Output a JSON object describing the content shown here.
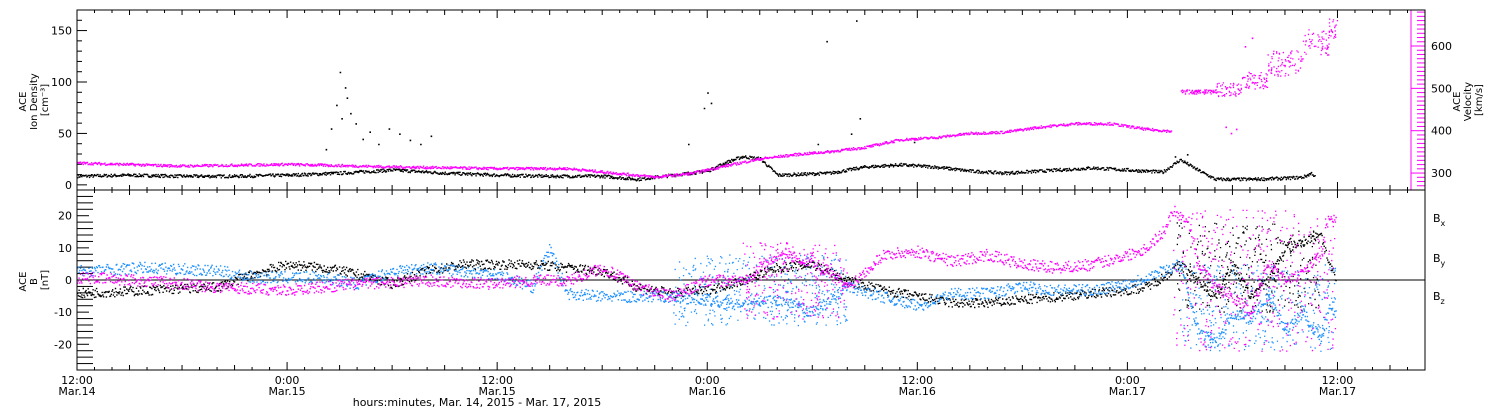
{
  "colors": {
    "density": "#000000",
    "velocity": "#ff00ff",
    "bx": "#000000",
    "by": "#1e90ff",
    "bz": "#ff00ff"
  },
  "time_axis": {
    "ticks": [
      {
        "hour": 0,
        "time": "12:00",
        "date": "Mar.14"
      },
      {
        "hour": 12,
        "time": "0:00",
        "date": "Mar.15"
      },
      {
        "hour": 24,
        "time": "12:00",
        "date": "Mar.15"
      },
      {
        "hour": 36,
        "time": "0:00",
        "date": "Mar.16"
      },
      {
        "hour": 48,
        "time": "12:00",
        "date": "Mar.16"
      },
      {
        "hour": 60,
        "time": "0:00",
        "date": "Mar.17"
      },
      {
        "hour": 72,
        "time": "12:00",
        "date": "Mar.17"
      }
    ],
    "label": "hours:minutes, Mar. 14, 2015 - Mar. 17, 2015"
  },
  "chart_data": [
    {
      "type": "scatter",
      "ylabel_lines": [
        "ACE",
        "Ion Density",
        "[cm⁻³]"
      ],
      "ylim": [
        -5,
        170
      ],
      "yticks": [
        0,
        50,
        100,
        150
      ],
      "y2label_lines": [
        "ACE",
        "Velocity",
        "[km/s]"
      ],
      "y2lim": [
        260,
        685
      ],
      "y2ticks": [
        300,
        400,
        500,
        600
      ],
      "xlim_hours": [
        0,
        77
      ],
      "series": [
        {
          "key": "density",
          "axis": "left",
          "knots": [
            [
              0,
              9
            ],
            [
              3,
              10
            ],
            [
              6,
              9
            ],
            [
              9,
              9
            ],
            [
              12,
              10
            ],
            [
              15,
              12
            ],
            [
              18,
              15
            ],
            [
              21,
              12
            ],
            [
              24,
              10
            ],
            [
              27,
              9
            ],
            [
              30,
              9
            ],
            [
              32,
              6
            ],
            [
              34,
              10
            ],
            [
              36,
              14
            ],
            [
              37,
              22
            ],
            [
              38,
              28
            ],
            [
              39,
              26
            ],
            [
              40,
              10
            ],
            [
              43,
              12
            ],
            [
              45,
              18
            ],
            [
              47,
              20
            ],
            [
              49,
              18
            ],
            [
              51,
              14
            ],
            [
              53,
              12
            ],
            [
              56,
              15
            ],
            [
              58,
              17
            ],
            [
              60,
              15
            ],
            [
              61,
              14
            ],
            [
              62,
              13
            ],
            [
              63,
              25
            ],
            [
              64,
              15
            ],
            [
              65,
              6
            ],
            [
              67,
              6
            ],
            [
              69,
              7
            ],
            [
              70,
              8
            ],
            [
              70.5,
              12
            ],
            [
              70.7,
              8
            ]
          ],
          "noise": 1.5,
          "step": 0.04,
          "spikes": [
            [
              15.0,
              110
            ],
            [
              15.3,
              95
            ],
            [
              14.8,
              78
            ],
            [
              15.6,
              70
            ],
            [
              14.5,
              55
            ],
            [
              15.9,
              60
            ],
            [
              16.3,
              45
            ],
            [
              16.7,
              52
            ],
            [
              17.2,
              40
            ],
            [
              17.8,
              55
            ],
            [
              18.4,
              50
            ],
            [
              19.0,
              44
            ],
            [
              19.6,
              40
            ],
            [
              20.2,
              48
            ],
            [
              14.2,
              35
            ],
            [
              15.1,
              65
            ],
            [
              15.4,
              85
            ],
            [
              36.0,
              90
            ],
            [
              36.2,
              80
            ],
            [
              35.8,
              75
            ],
            [
              34.9,
              40
            ],
            [
              42.8,
              140
            ],
            [
              44.5,
              160
            ],
            [
              44.7,
              65
            ],
            [
              44.2,
              50
            ],
            [
              42.3,
              40
            ],
            [
              47.8,
              42
            ],
            [
              62.7,
              28
            ],
            [
              63.4,
              30
            ]
          ]
        },
        {
          "key": "velocity",
          "axis": "right",
          "knots": [
            [
              0,
              325
            ],
            [
              6,
              318
            ],
            [
              12,
              322
            ],
            [
              18,
              316
            ],
            [
              24,
              312
            ],
            [
              28,
              312
            ],
            [
              31,
              300
            ],
            [
              33,
              292
            ],
            [
              35,
              300
            ],
            [
              37,
              318
            ],
            [
              39,
              335
            ],
            [
              41,
              345
            ],
            [
              43,
              352
            ],
            [
              45,
              362
            ],
            [
              47,
              380
            ],
            [
              49,
              385
            ],
            [
              51,
              395
            ],
            [
              53,
              398
            ],
            [
              55,
              410
            ],
            [
              57,
              418
            ],
            [
              59,
              418
            ],
            [
              61,
              405
            ],
            [
              62.5,
              400
            ]
          ],
          "noise": 3,
          "step": 0.04,
          "cloud": [
            [
              63,
              65,
              488,
              498
            ],
            [
              65,
              66.5,
              480,
              515
            ],
            [
              66.5,
              68,
              500,
              540
            ],
            [
              68,
              70,
              530,
              590
            ],
            [
              70,
              71.5,
              580,
              640
            ],
            [
              71.5,
              72,
              620,
              665
            ]
          ],
          "spikes": [
            [
              65.6,
              410
            ],
            [
              65.9,
              395
            ],
            [
              66.2,
              405
            ],
            [
              66.7,
              600
            ],
            [
              67.1,
              620
            ]
          ]
        }
      ]
    },
    {
      "type": "scatter",
      "ylabel_lines": [
        "ACE",
        "B",
        "[nT]"
      ],
      "ylim": [
        -28,
        28
      ],
      "yticks": [
        -20,
        -10,
        0,
        10,
        20
      ],
      "xlim_hours": [
        0,
        77
      ],
      "series": [
        {
          "key": "bx",
          "name": "Bx",
          "knots": [
            [
              0,
              -4
            ],
            [
              4,
              -3
            ],
            [
              8,
              -2
            ],
            [
              10,
              2
            ],
            [
              12,
              5
            ],
            [
              14,
              4
            ],
            [
              16,
              2
            ],
            [
              18,
              -1
            ],
            [
              20,
              3
            ],
            [
              22,
              5
            ],
            [
              24,
              5
            ],
            [
              26,
              5
            ],
            [
              28,
              4
            ],
            [
              30,
              3
            ],
            [
              32,
              -2
            ],
            [
              34,
              -4
            ],
            [
              36,
              -3
            ],
            [
              38,
              0
            ],
            [
              40,
              4
            ],
            [
              42,
              5
            ],
            [
              44,
              0
            ],
            [
              46,
              -3
            ],
            [
              48,
              -5
            ],
            [
              50,
              -7
            ],
            [
              52,
              -7
            ],
            [
              54,
              -6
            ],
            [
              56,
              -5
            ],
            [
              58,
              -4
            ],
            [
              60,
              -3
            ],
            [
              61,
              -2
            ],
            [
              62,
              1
            ],
            [
              63,
              5
            ],
            [
              64,
              0
            ],
            [
              65,
              -5
            ],
            [
              66,
              5
            ],
            [
              67,
              -5
            ],
            [
              68,
              0
            ],
            [
              69,
              10
            ],
            [
              70,
              12
            ],
            [
              71,
              15
            ],
            [
              71.5,
              5
            ],
            [
              71.9,
              0
            ]
          ],
          "noise": 1.5,
          "step": 0.04,
          "cloud": [
            [
              62.8,
              71,
              -10,
              18
            ]
          ]
        },
        {
          "key": "by",
          "name": "By",
          "knots": [
            [
              0,
              3
            ],
            [
              4,
              4
            ],
            [
              8,
              3
            ],
            [
              10,
              1
            ],
            [
              12,
              1
            ],
            [
              14,
              1
            ],
            [
              16,
              -1
            ],
            [
              18,
              3
            ],
            [
              20,
              4
            ],
            [
              22,
              3
            ],
            [
              24,
              2
            ],
            [
              26,
              -2
            ],
            [
              27,
              10
            ],
            [
              28,
              -4
            ],
            [
              30,
              -5
            ],
            [
              32,
              -5
            ],
            [
              34,
              -5
            ],
            [
              36,
              -6
            ],
            [
              38,
              -8
            ],
            [
              40,
              -6
            ],
            [
              42,
              -10
            ],
            [
              44,
              -2
            ],
            [
              46,
              -5
            ],
            [
              48,
              -8
            ],
            [
              50,
              -4
            ],
            [
              52,
              -4
            ],
            [
              54,
              -2
            ],
            [
              56,
              -3
            ],
            [
              58,
              -3
            ],
            [
              60,
              -1
            ],
            [
              61,
              1
            ],
            [
              62,
              3
            ],
            [
              63,
              5
            ],
            [
              64,
              -15
            ],
            [
              65,
              -20
            ],
            [
              66,
              -10
            ],
            [
              67,
              -12
            ],
            [
              68,
              -5
            ],
            [
              69,
              -15
            ],
            [
              70,
              -10
            ],
            [
              71,
              -18
            ],
            [
              71.5,
              -8
            ],
            [
              71.9,
              -10
            ]
          ],
          "noise": 1.8,
          "step": 0.04,
          "cloud": [
            [
              63,
              71.9,
              -22,
              5
            ],
            [
              34,
              44,
              -14,
              8
            ]
          ]
        },
        {
          "key": "bz",
          "name": "Bz",
          "knots": [
            [
              0,
              1
            ],
            [
              4,
              0
            ],
            [
              8,
              -2
            ],
            [
              12,
              -3
            ],
            [
              16,
              -1
            ],
            [
              20,
              0
            ],
            [
              24,
              -1
            ],
            [
              26,
              0
            ],
            [
              28,
              0
            ],
            [
              30,
              4
            ],
            [
              32,
              -2
            ],
            [
              34,
              -5
            ],
            [
              36,
              0
            ],
            [
              38,
              0
            ],
            [
              40,
              8
            ],
            [
              42,
              6
            ],
            [
              44,
              -2
            ],
            [
              46,
              8
            ],
            [
              48,
              9
            ],
            [
              50,
              6
            ],
            [
              52,
              8
            ],
            [
              54,
              5
            ],
            [
              56,
              4
            ],
            [
              58,
              5
            ],
            [
              60,
              8
            ],
            [
              61,
              10
            ],
            [
              62,
              15
            ],
            [
              62.6,
              22
            ],
            [
              63.5,
              18
            ],
            [
              64,
              5
            ],
            [
              65,
              -2
            ],
            [
              66,
              -5
            ],
            [
              67,
              -10
            ],
            [
              68,
              5
            ],
            [
              69,
              0
            ],
            [
              70,
              2
            ],
            [
              71,
              8
            ],
            [
              71.5,
              20
            ],
            [
              71.9,
              18
            ]
          ],
          "noise": 1.8,
          "step": 0.04,
          "cloud": [
            [
              62.6,
              71.9,
              -22,
              22
            ],
            [
              38,
              44,
              -12,
              12
            ]
          ]
        }
      ],
      "legend": [
        {
          "key": "bx",
          "base": "B",
          "sub": "x"
        },
        {
          "key": "by",
          "base": "B",
          "sub": "y"
        },
        {
          "key": "bz",
          "base": "B",
          "sub": "z"
        }
      ]
    }
  ]
}
